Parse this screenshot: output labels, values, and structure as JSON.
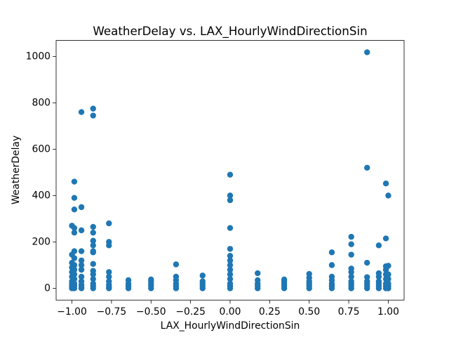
{
  "chart_data": {
    "type": "scatter",
    "title": "WeatherDelay vs. LAX_HourlyWindDirectionSin",
    "x_label": "LAX_HourlyWindDirectionSin",
    "y_label": "WeatherDelay",
    "color": "#1f77b4",
    "xlim": [
      -1.1,
      1.1
    ],
    "ylim": [
      -51,
      1069
    ],
    "xticks": [
      {
        "value": -1,
        "label": "−1.00"
      },
      {
        "value": -0.75,
        "label": "−0.75"
      },
      {
        "value": -0.5,
        "label": "−0.50"
      },
      {
        "value": -0.25,
        "label": "−0.25"
      },
      {
        "value": 0,
        "label": "0.00"
      },
      {
        "value": 0.25,
        "label": "0.25"
      },
      {
        "value": 0.5,
        "label": "0.50"
      },
      {
        "value": 0.75,
        "label": "0.75"
      },
      {
        "value": 1,
        "label": "1.00"
      }
    ],
    "yticks": [
      0,
      200,
      400,
      600,
      800,
      1000
    ],
    "x": [
      -1,
      -1,
      -1,
      -1,
      -1,
      -1,
      -1,
      -1,
      -1,
      -1,
      -1,
      -0.985,
      -0.985,
      -0.985,
      -0.985,
      -0.985,
      -0.985,
      -0.985,
      -0.985,
      -0.985,
      -0.985,
      -0.985,
      -0.985,
      -0.985,
      -0.985,
      -0.94,
      -0.94,
      -0.94,
      -0.94,
      -0.94,
      -0.94,
      -0.94,
      -0.94,
      -0.94,
      -0.94,
      -0.94,
      -0.94,
      -0.866,
      -0.866,
      -0.866,
      -0.866,
      -0.866,
      -0.866,
      -0.866,
      -0.866,
      -0.866,
      -0.866,
      -0.866,
      -0.866,
      -0.866,
      -0.866,
      -0.866,
      -0.766,
      -0.766,
      -0.766,
      -0.766,
      -0.766,
      -0.766,
      -0.766,
      -0.766,
      -0.766,
      -0.643,
      -0.643,
      -0.643,
      -0.643,
      -0.5,
      -0.5,
      -0.5,
      -0.5,
      -0.5,
      -0.342,
      -0.342,
      -0.342,
      -0.342,
      -0.342,
      -0.342,
      -0.174,
      -0.174,
      -0.174,
      -0.174,
      -0.174,
      0,
      0,
      0,
      0,
      0,
      0,
      0,
      0,
      0,
      0,
      0,
      0,
      0,
      0,
      0.174,
      0.174,
      0.174,
      0.174,
      0.174,
      0.342,
      0.342,
      0.342,
      0.342,
      0.342,
      0.5,
      0.5,
      0.5,
      0.5,
      0.5,
      0.5,
      0.643,
      0.643,
      0.643,
      0.643,
      0.643,
      0.643,
      0.643,
      0.766,
      0.766,
      0.766,
      0.766,
      0.766,
      0.766,
      0.766,
      0.766,
      0.766,
      0.766,
      0.866,
      0.866,
      0.866,
      0.866,
      0.866,
      0.866,
      0.866,
      0.866,
      0.94,
      0.94,
      0.94,
      0.94,
      0.94,
      0.94,
      0.94,
      0.985,
      0.985,
      0.985,
      0.985,
      0.985,
      0.985,
      0.985,
      0.985,
      0.985,
      1,
      1,
      1,
      1,
      1,
      1,
      1
    ],
    "values": [
      0,
      5,
      10,
      20,
      30,
      50,
      70,
      90,
      110,
      145,
      270,
      0,
      10,
      20,
      40,
      60,
      80,
      100,
      130,
      160,
      240,
      260,
      340,
      390,
      460,
      0,
      5,
      15,
      30,
      50,
      80,
      100,
      120,
      160,
      250,
      350,
      760,
      0,
      10,
      20,
      40,
      60,
      75,
      105,
      155,
      160,
      185,
      205,
      240,
      265,
      745,
      775,
      0,
      5,
      15,
      30,
      50,
      70,
      185,
      200,
      280,
      0,
      10,
      20,
      35,
      0,
      10,
      20,
      30,
      38,
      0,
      10,
      20,
      35,
      50,
      103,
      0,
      10,
      20,
      30,
      55,
      0,
      10,
      20,
      40,
      60,
      80,
      100,
      120,
      140,
      170,
      260,
      380,
      400,
      490,
      0,
      10,
      20,
      35,
      65,
      0,
      10,
      20,
      30,
      38,
      0,
      10,
      20,
      30,
      45,
      62,
      0,
      10,
      20,
      35,
      50,
      100,
      155,
      0,
      10,
      20,
      30,
      50,
      70,
      85,
      145,
      190,
      222,
      0,
      10,
      20,
      30,
      48,
      110,
      520,
      1018,
      0,
      10,
      20,
      30,
      50,
      65,
      185,
      0,
      10,
      20,
      40,
      60,
      80,
      95,
      215,
      452,
      0,
      10,
      20,
      40,
      60,
      97,
      400
    ]
  }
}
